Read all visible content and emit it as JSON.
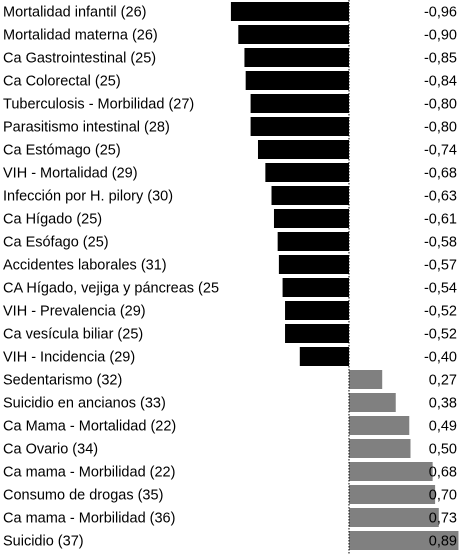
{
  "chart_data": {
    "type": "bar",
    "orientation": "horizontal",
    "title": "",
    "xlabel": "",
    "ylabel": "",
    "xlim": [
      -1.0,
      1.0
    ],
    "grid": false,
    "negative_color": "#000000",
    "positive_color": "#808080",
    "categories": [
      "Mortalidad infantil (26)",
      "Mortalidad materna (26)",
      "Ca Gastrointestinal (25)",
      "Ca Colorectal (25)",
      "Tuberculosis - Morbilidad (27)",
      "Parasitismo intestinal (28)",
      "Ca Estómago (25)",
      "VIH - Mortalidad (29)",
      "Infección por H. pilory (30)",
      "Ca Hígado (25)",
      "Ca Esófago (25)",
      "Accidentes laborales (31)",
      "CA Hígado, vejiga y páncreas (25",
      "VIH - Prevalencia (29)",
      "Ca vesícula biliar (25)",
      "VIH - Incidencia (29)",
      "Sedentarismo (32)",
      "Suicidio en ancianos (33)",
      "Ca Mama - Mortalidad (22)",
      "Ca Ovario (34)",
      "Ca mama - Morbilidad (22)",
      "Consumo de drogas (35)",
      "Ca mama - Morbilidad (36)",
      "Suicidio (37)"
    ],
    "values": [
      -0.96,
      -0.9,
      -0.85,
      -0.84,
      -0.8,
      -0.8,
      -0.74,
      -0.68,
      -0.63,
      -0.61,
      -0.58,
      -0.57,
      -0.54,
      -0.52,
      -0.52,
      -0.4,
      0.27,
      0.38,
      0.49,
      0.5,
      0.68,
      0.7,
      0.73,
      0.89
    ],
    "value_labels": [
      "-0,96",
      "-0,90",
      "-0,85",
      "-0,84",
      "-0,80",
      "-0,80",
      "-0,74",
      "-0,68",
      "-0,63",
      "-0,61",
      "-0,58",
      "-0,57",
      "-0,54",
      "-0,52",
      "-0,52",
      "-0,40",
      "0,27",
      "0,38",
      "0,49",
      "0,50",
      "0,68",
      "0,70",
      "0,73",
      "0,89"
    ]
  }
}
